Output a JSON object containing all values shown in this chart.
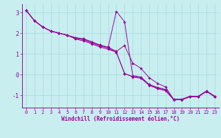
{
  "xlabel": "Windchill (Refroidissement éolien,°C)",
  "background_color": "#c8eef0",
  "line_color": "#990099",
  "xlim": [
    -0.5,
    23.5
  ],
  "ylim": [
    -1.6,
    3.4
  ],
  "yticks": [
    -1,
    0,
    1,
    2,
    3
  ],
  "xticks": [
    0,
    1,
    2,
    3,
    4,
    5,
    6,
    7,
    8,
    9,
    10,
    11,
    12,
    13,
    14,
    15,
    16,
    17,
    18,
    19,
    20,
    21,
    22,
    23
  ],
  "series1_x": [
    0,
    1,
    2,
    3,
    4,
    5,
    6,
    7,
    8,
    9,
    10,
    11,
    12,
    13,
    14,
    15,
    16,
    17,
    18,
    19,
    20,
    21,
    22,
    23
  ],
  "series1_y": [
    3.1,
    2.6,
    2.3,
    2.1,
    2.0,
    1.9,
    1.78,
    1.72,
    1.58,
    1.42,
    1.32,
    3.05,
    2.55,
    -0.05,
    -0.12,
    -0.48,
    -0.62,
    -0.72,
    -1.2,
    -1.2,
    -1.05,
    -1.05,
    -0.8,
    -1.05
  ],
  "series2_x": [
    0,
    1,
    2,
    3,
    4,
    5,
    6,
    7,
    8,
    9,
    10,
    11,
    12,
    13,
    14,
    15,
    16,
    17,
    18,
    19,
    20,
    21,
    22,
    23
  ],
  "series2_y": [
    3.1,
    2.6,
    2.3,
    2.1,
    2.0,
    1.9,
    1.78,
    1.72,
    1.58,
    1.42,
    1.32,
    1.12,
    1.4,
    0.55,
    0.3,
    -0.15,
    -0.42,
    -0.6,
    -1.2,
    -1.2,
    -1.05,
    -1.05,
    -0.8,
    -1.05
  ],
  "series3_x": [
    0,
    1,
    2,
    3,
    4,
    5,
    6,
    7,
    8,
    9,
    10,
    11,
    12,
    13,
    14,
    15,
    16,
    17,
    18,
    19,
    20,
    21,
    22,
    23
  ],
  "series3_y": [
    3.1,
    2.6,
    2.3,
    2.1,
    2.0,
    1.9,
    1.75,
    1.68,
    1.52,
    1.38,
    1.28,
    1.08,
    0.05,
    -0.1,
    -0.15,
    -0.5,
    -0.65,
    -0.75,
    -1.2,
    -1.2,
    -1.05,
    -1.05,
    -0.8,
    -1.05
  ],
  "series4_x": [
    0,
    1,
    2,
    3,
    4,
    5,
    6,
    7,
    8,
    9,
    10,
    11,
    12,
    13,
    14,
    15,
    16,
    17,
    18,
    19,
    20,
    21,
    22,
    23
  ],
  "series4_y": [
    3.1,
    2.6,
    2.3,
    2.1,
    2.0,
    1.9,
    1.72,
    1.62,
    1.48,
    1.33,
    1.22,
    1.08,
    0.05,
    -0.12,
    -0.18,
    -0.52,
    -0.68,
    -0.78,
    -1.22,
    -1.22,
    -1.08,
    -1.08,
    -0.82,
    -1.08
  ],
  "xlabel_fontsize": 5.5,
  "tick_fontsize": 5,
  "linewidth": 0.7,
  "markersize": 1.8
}
